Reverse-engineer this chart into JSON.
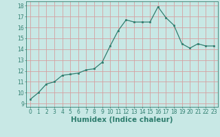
{
  "x": [
    0,
    1,
    2,
    3,
    4,
    5,
    6,
    7,
    8,
    9,
    10,
    11,
    12,
    13,
    14,
    15,
    16,
    17,
    18,
    19,
    20,
    21,
    22,
    23
  ],
  "y": [
    9.4,
    10.0,
    10.8,
    11.0,
    11.6,
    11.7,
    11.8,
    12.1,
    12.2,
    12.8,
    14.3,
    15.7,
    16.7,
    16.5,
    16.5,
    16.5,
    17.9,
    16.9,
    16.2,
    14.5,
    14.1,
    14.5,
    14.3,
    14.3
  ],
  "line_color": "#2e7d6e",
  "marker_color": "#2e7d6e",
  "bg_color": "#c8e8e5",
  "grid_color": "#d4a0a0",
  "xlabel": "Humidex (Indice chaleur)",
  "ylabel_ticks": [
    9,
    10,
    11,
    12,
    13,
    14,
    15,
    16,
    17,
    18
  ],
  "ylim": [
    8.7,
    18.4
  ],
  "xlim": [
    -0.5,
    23.5
  ],
  "tick_color": "#2e7d6e",
  "label_color": "#2e7d6e",
  "font_size": 5.5,
  "xlabel_fontsize": 7.5,
  "linewidth": 0.9,
  "markersize": 2.0
}
